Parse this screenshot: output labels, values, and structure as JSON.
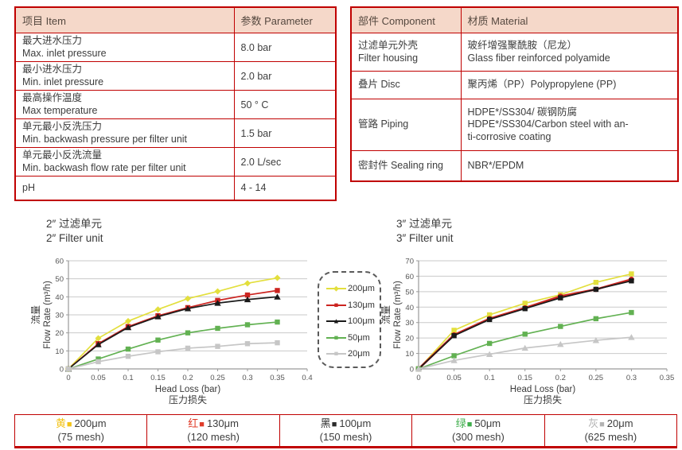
{
  "colors": {
    "table_border": "#c00000",
    "table_header_bg": "#f5d8c9",
    "text": "#3d3d3d",
    "grid": "#c9c9c9",
    "axis": "#9a9a9a"
  },
  "spec_table": {
    "headers": [
      "项目 Item",
      "参数 Parameter"
    ],
    "rows": [
      {
        "lines": [
          "最大进水压力",
          "Max. inlet pressure"
        ],
        "value": "8.0 bar"
      },
      {
        "lines": [
          "最小进水压力",
          "Min. inlet pressure"
        ],
        "value": "2.0 bar"
      },
      {
        "lines": [
          "最高操作温度",
          "Max temperature"
        ],
        "value": "50 ° C"
      },
      {
        "lines": [
          "单元最小反洗压力",
          "Min. backwash pressure per filter unit"
        ],
        "value": "1.5 bar"
      },
      {
        "lines": [
          "单元最小反洗流量",
          "Min. backwash flow rate per filter unit"
        ],
        "value": "2.0 L/sec"
      },
      {
        "lines": [
          "pH"
        ],
        "value": "4 - 14"
      }
    ]
  },
  "material_table": {
    "headers": [
      "部件 Component",
      "材质 Material"
    ],
    "rows": [
      {
        "component": [
          "过滤单元外壳",
          "Filter housing"
        ],
        "material": [
          "玻纤增强聚酰胺（尼龙）",
          "Glass fiber reinforced polyamide"
        ]
      },
      {
        "component": [
          "叠片 Disc"
        ],
        "material": [
          "聚丙烯（PP）Polypropylene (PP)"
        ]
      },
      {
        "component": [
          "管路 Piping"
        ],
        "material": [
          "HDPE*/SS304/ 碳钢防腐",
          "HDPE*/SS304/Carbon steel with an-",
          "ti-corrosive coating"
        ]
      },
      {
        "component": [
          "密封件 Sealing ring"
        ],
        "material": [
          "NBR*/EPDM"
        ]
      }
    ]
  },
  "chart_data": [
    {
      "type": "line",
      "title_zh": "2″ 过滤单元",
      "title_en": "2″ Filter unit",
      "xlabel_en": "Head Loss (bar)",
      "xlabel_zh": "压力损失",
      "ylabel_zh": "流量",
      "ylabel_en": "Flow Rate (m³/h)",
      "xlim": [
        0,
        0.4
      ],
      "ylim": [
        0,
        60
      ],
      "xticks": [
        0,
        0.05,
        0.1,
        0.15,
        0.2,
        0.25,
        0.3,
        0.35,
        0.4
      ],
      "yticks": [
        0,
        10,
        20,
        30,
        40,
        50,
        60
      ],
      "x": [
        0,
        0.05,
        0.1,
        0.15,
        0.2,
        0.25,
        0.3,
        0.35
      ],
      "series": [
        {
          "name": "200μm",
          "color": "#e3df3d",
          "marker": "diamond",
          "values": [
            0,
            17,
            26.5,
            33,
            39,
            43,
            47.5,
            50.5
          ]
        },
        {
          "name": "130μm",
          "color": "#cc2420",
          "marker": "square",
          "values": [
            0,
            14,
            23.5,
            29.5,
            34,
            38,
            41,
            43.5
          ]
        },
        {
          "name": "100μm",
          "color": "#1a1a1a",
          "marker": "triangle",
          "values": [
            0,
            13.5,
            23,
            29,
            33.5,
            36.5,
            38.5,
            40
          ]
        },
        {
          "name": "50μm",
          "color": "#62b152",
          "marker": "square",
          "values": [
            0,
            5.5,
            11,
            16,
            20,
            22.5,
            24.5,
            26
          ]
        },
        {
          "name": "20μm",
          "color": "#c6c6c6",
          "marker": "square",
          "values": [
            0,
            4,
            7,
            9.5,
            11.5,
            12.5,
            14,
            14.5
          ]
        }
      ]
    },
    {
      "type": "line",
      "title_zh": "3″ 过滤单元",
      "title_en": "3″ Filter unit",
      "xlabel_en": "Head Loss (bar)",
      "xlabel_zh": "压力损失",
      "ylabel_zh": "流量",
      "ylabel_en": "Flow Rate (m³/h)",
      "xlim": [
        0,
        0.35
      ],
      "ylim": [
        0,
        70
      ],
      "xticks": [
        0,
        0.05,
        0.1,
        0.15,
        0.2,
        0.25,
        0.3,
        0.35
      ],
      "yticks": [
        0,
        10,
        20,
        30,
        40,
        50,
        60,
        70
      ],
      "x": [
        0,
        0.05,
        0.1,
        0.15,
        0.2,
        0.25,
        0.3
      ],
      "series": [
        {
          "name": "200μm",
          "color": "#e3df3d",
          "marker": "square",
          "values": [
            0,
            25,
            35,
            42.5,
            48,
            56,
            61.5
          ]
        },
        {
          "name": "130μm",
          "color": "#cc2420",
          "marker": "circle",
          "width": 2.6,
          "values": [
            0,
            22,
            32.5,
            39.5,
            47,
            51.5,
            58
          ]
        },
        {
          "name": "100μm",
          "color": "#1a1a1a",
          "marker": "square",
          "values": [
            0,
            21.5,
            32,
            39,
            46,
            51.5,
            57
          ]
        },
        {
          "name": "50μm",
          "color": "#62b152",
          "marker": "square",
          "values": [
            0,
            8.5,
            16.5,
            22.5,
            27.5,
            32.5,
            36.5
          ]
        },
        {
          "name": "20μm",
          "color": "#c6c6c6",
          "marker": "triangle",
          "values": [
            0,
            5.5,
            9.5,
            13.5,
            16,
            18.5,
            20.5
          ]
        }
      ]
    }
  ],
  "legend_box": {
    "items": [
      {
        "label": "200μm",
        "color": "#e3df3d",
        "marker": "diamond"
      },
      {
        "label": "130μm",
        "color": "#cc2420",
        "marker": "square"
      },
      {
        "label": "100μm",
        "color": "#1a1a1a",
        "marker": "triangle"
      },
      {
        "label": "50μm",
        "color": "#62b152",
        "marker": "square"
      },
      {
        "label": "20μm",
        "color": "#c6c6c6",
        "marker": "square"
      }
    ]
  },
  "bottom_legend": {
    "cells": [
      {
        "color_name": "黄",
        "swatch": "■",
        "size": "200μm",
        "mesh": "(75 mesh)",
        "color": "#f2c318"
      },
      {
        "color_name": "红",
        "swatch": "■",
        "size": "130μm",
        "mesh": "(120 mesh)",
        "color": "#e03c2a"
      },
      {
        "color_name": "黑",
        "swatch": "■",
        "size": "100μm",
        "mesh": "(150 mesh)",
        "color": "#2b2b2b"
      },
      {
        "color_name": "绿",
        "swatch": "■",
        "size": "50μm",
        "mesh": "(300 mesh)",
        "color": "#3fae4c"
      },
      {
        "color_name": "灰",
        "swatch": "■",
        "size": "20μm",
        "mesh": "(625 mesh)",
        "color": "#b3b3b3"
      }
    ]
  }
}
